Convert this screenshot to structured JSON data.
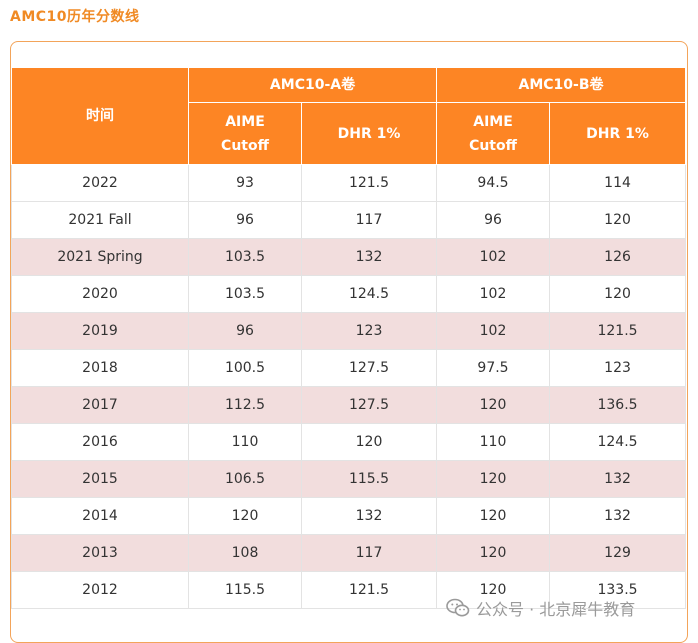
{
  "title": "AMC10历年分数线",
  "table": {
    "time_header": "时间",
    "group_a": "AMC10-A卷",
    "group_b": "AMC10-B卷",
    "sub_headers": [
      "AIME Cutoff",
      "DHR 1%",
      "AIME Cutoff",
      "DHR 1%"
    ],
    "rows": [
      {
        "year": "2022",
        "a_aime": "93",
        "a_dhr": "121.5",
        "b_aime": "94.5",
        "b_dhr": "114",
        "shaded": false
      },
      {
        "year": "2021 Fall",
        "a_aime": "96",
        "a_dhr": "117",
        "b_aime": "96",
        "b_dhr": "120",
        "shaded": false
      },
      {
        "year": "2021 Spring",
        "a_aime": "103.5",
        "a_dhr": "132",
        "b_aime": "102",
        "b_dhr": "126",
        "shaded": true
      },
      {
        "year": "2020",
        "a_aime": "103.5",
        "a_dhr": "124.5",
        "b_aime": "102",
        "b_dhr": "120",
        "shaded": false
      },
      {
        "year": "2019",
        "a_aime": "96",
        "a_dhr": "123",
        "b_aime": "102",
        "b_dhr": "121.5",
        "shaded": true
      },
      {
        "year": "2018",
        "a_aime": "100.5",
        "a_dhr": "127.5",
        "b_aime": "97.5",
        "b_dhr": "123",
        "shaded": false
      },
      {
        "year": "2017",
        "a_aime": "112.5",
        "a_dhr": "127.5",
        "b_aime": "120",
        "b_dhr": "136.5",
        "shaded": true
      },
      {
        "year": "2016",
        "a_aime": "110",
        "a_dhr": "120",
        "b_aime": "110",
        "b_dhr": "124.5",
        "shaded": false
      },
      {
        "year": "2015",
        "a_aime": "106.5",
        "a_dhr": "115.5",
        "b_aime": "120",
        "b_dhr": "132",
        "shaded": true
      },
      {
        "year": "2014",
        "a_aime": "120",
        "a_dhr": "132",
        "b_aime": "120",
        "b_dhr": "132",
        "shaded": false
      },
      {
        "year": "2013",
        "a_aime": "108",
        "a_dhr": "117",
        "b_aime": "120",
        "b_dhr": "129",
        "shaded": true
      },
      {
        "year": "2012",
        "a_aime": "115.5",
        "a_dhr": "121.5",
        "b_aime": "120",
        "b_dhr": "133.5",
        "shaded": false
      }
    ]
  },
  "watermark": {
    "text": "公众号 · 北京犀牛教育",
    "icon": "wechat-icon"
  },
  "colors": {
    "accent": "#fd8524",
    "title": "#f08a24",
    "shade": "#f2dddd",
    "border": "#f3a45a"
  }
}
